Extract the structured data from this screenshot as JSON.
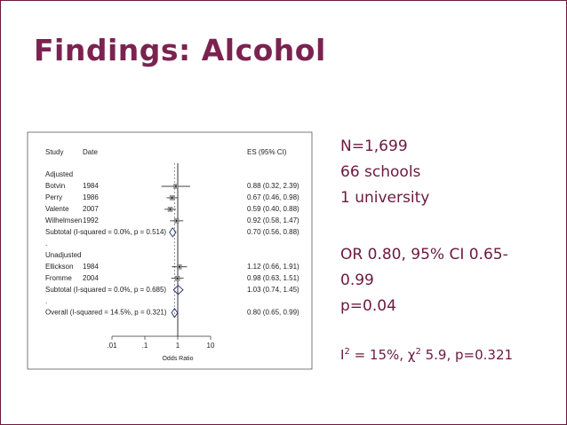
{
  "slide": {
    "title": "Findings: Alcohol",
    "points": [
      "N=1,699",
      "66 schools",
      "1 university",
      "OR 0.80, 95% CI 0.65-0.99",
      "p=0.04"
    ],
    "stats": [
      {
        "text": "I"
      },
      {
        "text": "2",
        "sup": true
      },
      {
        "text": " = 15%, "
      },
      {
        "text": "χ"
      },
      {
        "text": "2",
        "sup": true
      },
      {
        "text": " 5.9, p=0.321"
      }
    ]
  },
  "forest": {
    "headers": {
      "study": "Study",
      "date": "Date",
      "es": "ES (95% CI)"
    },
    "xlabel": "Odds Ratio",
    "log": true,
    "xlim": [
      0.01,
      10
    ],
    "xticks": [
      {
        "value": 0.01,
        "label": ".01"
      },
      {
        "value": 0.1,
        "label": ".1"
      },
      1,
      10
    ],
    "overall_line": 0.8,
    "rows": [
      {
        "study": "Adjusted"
      },
      {
        "study": "Botvin",
        "date": "1984",
        "es": 0.88,
        "lo": 0.32,
        "hi": 2.39,
        "label": "0.88 (0.32, 2.39)"
      },
      {
        "study": "Perry",
        "date": "1986",
        "es": 0.67,
        "lo": 0.46,
        "hi": 0.98,
        "label": "0.67 (0.46, 0.98)"
      },
      {
        "study": "Valente",
        "date": "2007",
        "es": 0.59,
        "lo": 0.4,
        "hi": 0.88,
        "label": "0.59 (0.40, 0.88)"
      },
      {
        "study": "Wilhelmsen",
        "date": "1992",
        "es": 0.92,
        "lo": 0.58,
        "hi": 1.47,
        "label": "0.92 (0.58, 1.47)"
      },
      {
        "study": "Subtotal  (I-squared = 0.0%, p = 0.514)",
        "diamond": true,
        "es": 0.7,
        "lo": 0.56,
        "hi": 0.88,
        "label": "0.70 (0.56, 0.88)"
      },
      {
        "study": "."
      },
      {
        "study": "Unadjusted"
      },
      {
        "study": "Ellickson",
        "date": "1984",
        "es": 1.12,
        "lo": 0.66,
        "hi": 1.91,
        "label": "1.12 (0.66, 1.91)"
      },
      {
        "study": "Fromme",
        "date": "2004",
        "es": 0.98,
        "lo": 0.63,
        "hi": 1.51,
        "label": "0.98 (0.63, 1.51)"
      },
      {
        "study": "Subtotal  (I-squared = 0.0%, p = 0.685)",
        "diamond": true,
        "es": 1.03,
        "lo": 0.74,
        "hi": 1.45,
        "label": "1.03 (0.74, 1.45)"
      },
      {
        "study": "."
      },
      {
        "study": "Overall  (I-squared = 14.5%, p = 0.321)",
        "diamond": true,
        "es": 0.8,
        "lo": 0.65,
        "hi": 0.99,
        "label": "0.80 (0.65, 0.99)"
      }
    ]
  }
}
